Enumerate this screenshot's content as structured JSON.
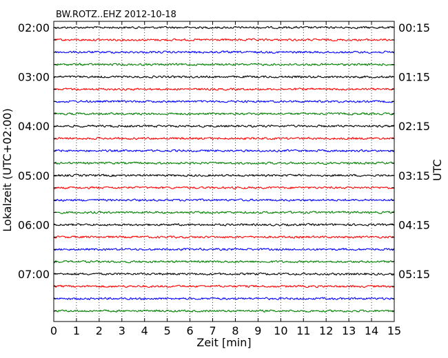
{
  "chart_data": {
    "type": "line",
    "title": "BW.ROTZ..EHZ 2012-10-18",
    "xlabel": "Zeit  [min]",
    "ylabel_left": "Lokalzeit (UTC+02:00)",
    "ylabel_right": "UTC",
    "xlim": [
      0,
      15
    ],
    "x_ticks": [
      "0",
      "1",
      "2",
      "3",
      "4",
      "5",
      "6",
      "7",
      "8",
      "9",
      "10",
      "11",
      "12",
      "13",
      "14",
      "15"
    ],
    "grid": "vertical dotted at each minute",
    "trace_count": 24,
    "trace_color_cycle": [
      "#000000",
      "#ff0000",
      "#0000ff",
      "#008000"
    ],
    "left_ticks": [
      {
        "trace": 0,
        "label": "02:00"
      },
      {
        "trace": 4,
        "label": "03:00"
      },
      {
        "trace": 8,
        "label": "04:00"
      },
      {
        "trace": 12,
        "label": "05:00"
      },
      {
        "trace": 16,
        "label": "06:00"
      },
      {
        "trace": 20,
        "label": "07:00"
      }
    ],
    "right_ticks": [
      {
        "trace": 0,
        "label": "00:15"
      },
      {
        "trace": 4,
        "label": "01:15"
      },
      {
        "trace": 8,
        "label": "02:15"
      },
      {
        "trace": 12,
        "label": "03:15"
      },
      {
        "trace": 16,
        "label": "04:15"
      },
      {
        "trace": 20,
        "label": "05:15"
      }
    ]
  }
}
